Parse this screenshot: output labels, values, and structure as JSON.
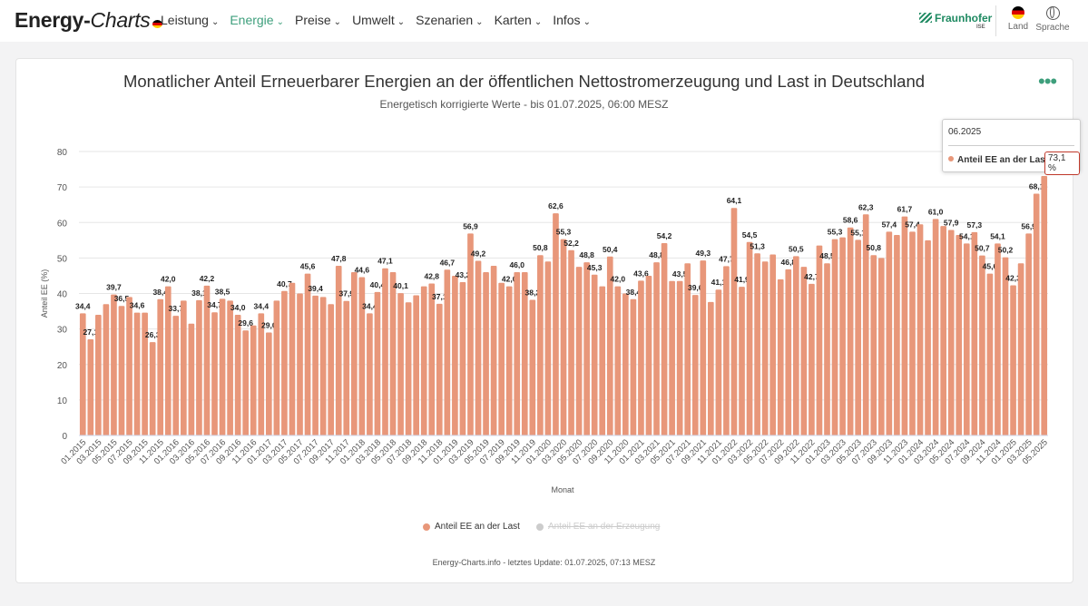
{
  "brand": {
    "name_bold": "Energy-",
    "name_italic": "Charts"
  },
  "nav": [
    {
      "label": "Leistung",
      "active": false
    },
    {
      "label": "Energie",
      "active": true
    },
    {
      "label": "Preise",
      "active": false
    },
    {
      "label": "Umwelt",
      "active": false
    },
    {
      "label": "Szenarien",
      "active": false
    },
    {
      "label": "Karten",
      "active": false
    },
    {
      "label": "Infos",
      "active": false
    }
  ],
  "partner": {
    "name": "Fraunhofer",
    "sub": "ISE"
  },
  "controls": {
    "land": "Land",
    "sprache": "Sprache"
  },
  "colors": {
    "accent": "#3e9f7c",
    "bar": "#e8977a",
    "grid": "#e6e6e6",
    "inactive": "#cccccc"
  },
  "tooltip": {
    "date": "06.2025",
    "series": "Anteil EE an der Last",
    "value": "73,1 %"
  },
  "legend": [
    {
      "label": "Anteil EE an der Last",
      "active": true
    },
    {
      "label": "Anteil EE an der Erzeugung",
      "active": false
    }
  ],
  "footer": "Energy-Charts.info - letztes Update: 01.07.2025, 07:13 MESZ",
  "chart_data": {
    "type": "bar",
    "title": "Monatlicher Anteil Erneuerbarer Energien an der öffentlichen Nettostromerzeugung und Last in Deutschland",
    "subtitle": "Energetisch korrigierte Werte - bis 01.07.2025, 06:00 MESZ",
    "xlabel": "Monat",
    "ylabel": "Anteil EE (%)",
    "ylim": [
      0,
      80
    ],
    "yticks": [
      0,
      10,
      20,
      30,
      40,
      50,
      60,
      70,
      80
    ],
    "grid": true,
    "legend_position": "bottom",
    "x_tick_labels": [
      "01.2015",
      "03.2015",
      "05.2015",
      "07.2015",
      "09.2015",
      "11.2015",
      "01.2016",
      "03.2016",
      "05.2016",
      "07.2016",
      "09.2016",
      "11.2016",
      "01.2017",
      "03.2017",
      "05.2017",
      "07.2017",
      "09.2017",
      "11.2017",
      "01.2018",
      "03.2018",
      "05.2018",
      "07.2018",
      "09.2018",
      "11.2018",
      "01.2019",
      "03.2019",
      "05.2019",
      "07.2019",
      "09.2019",
      "11.2019",
      "01.2020",
      "03.2020",
      "05.2020",
      "07.2020",
      "09.2020",
      "11.2020",
      "01.2021",
      "03.2021",
      "05.2021",
      "07.2021",
      "09.2021",
      "11.2021",
      "01.2022",
      "03.2022",
      "05.2022",
      "07.2022",
      "09.2022",
      "11.2022",
      "01.2023",
      "03.2023",
      "05.2023",
      "07.2023",
      "09.2023",
      "11.2023",
      "01.2024",
      "03.2024",
      "05.2024",
      "07.2024",
      "09.2024",
      "11.2024",
      "01.2025",
      "03.2025",
      "05.2025"
    ],
    "series": [
      {
        "name": "Anteil EE an der Last",
        "color": "#e8977a",
        "values": [
          34.4,
          27.1,
          34.0,
          37.0,
          39.7,
          36.5,
          39.0,
          34.6,
          34.6,
          26.3,
          38.4,
          42.0,
          33.7,
          38.0,
          31.5,
          38.1,
          42.2,
          34.7,
          38.5,
          38.0,
          34.0,
          29.6,
          31.0,
          34.4,
          29.0,
          38.0,
          40.7,
          43.0,
          40.0,
          45.6,
          39.4,
          39.0,
          37.0,
          47.8,
          37.9,
          46.0,
          44.6,
          34.4,
          40.4,
          47.1,
          46.0,
          40.1,
          37.5,
          39.5,
          42.0,
          42.8,
          37.1,
          46.7,
          45.0,
          43.2,
          56.9,
          49.2,
          46.0,
          47.8,
          43.0,
          42.0,
          46.0,
          46.0,
          38.2,
          50.8,
          49.0,
          62.6,
          55.3,
          52.2,
          47.5,
          48.8,
          45.3,
          42.0,
          50.4,
          42.0,
          40.0,
          38.4,
          43.6,
          45.0,
          48.8,
          54.2,
          43.5,
          43.5,
          48.5,
          39.6,
          49.3,
          37.6,
          41.1,
          47.7,
          64.1,
          41.9,
          54.5,
          51.3,
          49.0,
          51.0,
          44.0,
          46.8,
          50.5,
          47.5,
          42.7,
          53.5,
          48.5,
          55.3,
          55.8,
          58.6,
          55.1,
          62.3,
          50.8,
          50.0,
          57.4,
          56.5,
          61.7,
          57.4,
          59.5,
          55.0,
          61.0,
          59.0,
          57.9,
          56.5,
          54.1,
          57.3,
          50.7,
          45.6,
          54.1,
          50.2,
          42.3,
          48.5,
          56.9,
          68.1,
          73.1
        ],
        "labels": {
          "0": "34,4",
          "1": "27,1",
          "4": "39,7",
          "5": "36,5",
          "7": "34,6",
          "9": "26,3",
          "10": "38,4",
          "11": "42,0",
          "12": "33,7",
          "15": "38,1",
          "16": "42,2",
          "17": "34,7",
          "18": "38,5",
          "20": "34,0",
          "21": "29,6",
          "23": "34,4",
          "24": "29,0",
          "26": "40,7",
          "29": "45,6",
          "30": "39,4",
          "33": "47,8",
          "34": "37,9",
          "36": "44,6",
          "37": "34,4",
          "38": "40,4",
          "39": "47,1",
          "41": "40,1",
          "45": "42,8",
          "46": "37,1",
          "47": "46,7",
          "49": "43,2",
          "50": "56,9",
          "51": "49,2",
          "55": "42,0",
          "56": "46,0",
          "58": "38,2",
          "59": "50,8",
          "61": "62,6",
          "62": "55,3",
          "63": "52,2",
          "65": "48,8",
          "66": "45,3",
          "68": "50,4",
          "69": "42,0",
          "71": "38,4",
          "72": "43,6",
          "74": "48,8",
          "75": "54,2",
          "77": "43,5",
          "79": "39,6",
          "80": "49,3",
          "82": "41,1",
          "83": "47,7",
          "84": "64,1",
          "85": "41,9",
          "86": "54,5",
          "87": "51,3",
          "91": "46,8",
          "92": "50,5",
          "94": "42,7",
          "96": "48,5",
          "97": "55,3",
          "99": "58,6",
          "100": "55,1",
          "101": "62,3",
          "102": "50,8",
          "104": "57,4",
          "106": "61,7",
          "107": "57,4",
          "110": "61,0",
          "112": "57,9",
          "114": "54,1",
          "115": "57,3",
          "116": "50,7",
          "117": "45,6",
          "118": "54,1",
          "119": "50,2",
          "120": "42,3",
          "122": "56,9",
          "123": "68,1"
        }
      },
      {
        "name": "Anteil EE an der Erzeugung",
        "color": "#cccccc",
        "hidden": true
      }
    ]
  }
}
